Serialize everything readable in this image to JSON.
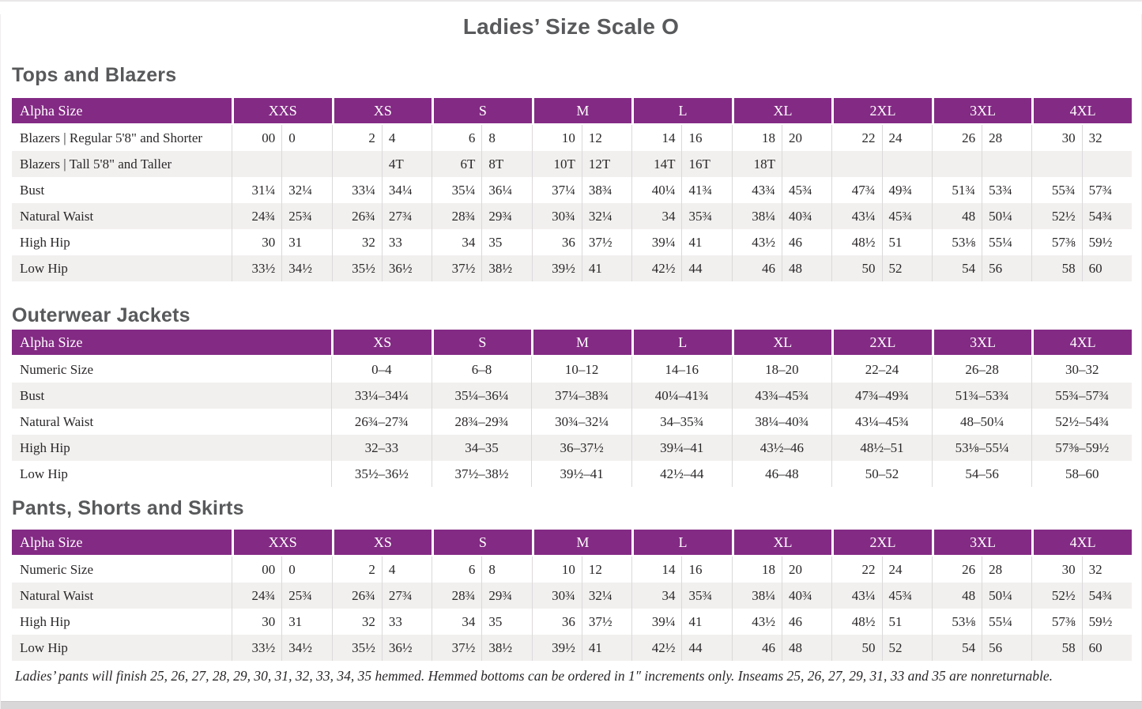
{
  "page": {
    "title": "Ladies’ Size Scale O",
    "footnote": "Ladies’ pants will finish 25, 26, 27, 28, 29, 30, 31, 32, 33, 34, 35 hemmed. Hemmed bottoms can be ordered in 1″ increments only. Inseams 25, 26, 27, 29, 31, 33 and 35 are nonreturnable."
  },
  "colors": {
    "header_purple": "#832a84",
    "stripe_gray": "#f2f0ef",
    "heading_gray": "#58595b"
  },
  "tables": {
    "tops": {
      "heading": "Tops and Blazers",
      "corner_label": "Alpha Size",
      "layout": "paired",
      "sizes": [
        "XXS",
        "XS",
        "S",
        "M",
        "L",
        "XL",
        "2XL",
        "3XL",
        "4XL"
      ],
      "rows": [
        {
          "label": "Blazers  |  Regular 5'8\" and Shorter",
          "values": [
            "00",
            "0",
            "2",
            "4",
            "6",
            "8",
            "10",
            "12",
            "14",
            "16",
            "18",
            "20",
            "22",
            "24",
            "26",
            "28",
            "30",
            "32"
          ]
        },
        {
          "label": "Blazers  |  Tall 5'8\" and Taller",
          "values": [
            "",
            "",
            "",
            "4T",
            "6T",
            "8T",
            "10T",
            "12T",
            "14T",
            "16T",
            "18T",
            "",
            "",
            "",
            "",
            "",
            "",
            ""
          ]
        },
        {
          "label": "Bust",
          "values": [
            "31¼",
            "32¼",
            "33¼",
            "34¼",
            "35¼",
            "36¼",
            "37¼",
            "38¾",
            "40¼",
            "41¾",
            "43¾",
            "45¾",
            "47¾",
            "49¾",
            "51¾",
            "53¾",
            "55¾",
            "57¾"
          ]
        },
        {
          "label": "Natural Waist",
          "values": [
            "24¾",
            "25¾",
            "26¾",
            "27¾",
            "28¾",
            "29¾",
            "30¾",
            "32¼",
            "34",
            "35¾",
            "38¼",
            "40¾",
            "43¼",
            "45¾",
            "48",
            "50¼",
            "52½",
            "54¾"
          ]
        },
        {
          "label": "High Hip",
          "values": [
            "30",
            "31",
            "32",
            "33",
            "34",
            "35",
            "36",
            "37½",
            "39¼",
            "41",
            "43½",
            "46",
            "48½",
            "51",
            "53⅛",
            "55¼",
            "57⅜",
            "59½"
          ]
        },
        {
          "label": "Low Hip",
          "values": [
            "33½",
            "34½",
            "35½",
            "36½",
            "37½",
            "38½",
            "39½",
            "41",
            "42½",
            "44",
            "46",
            "48",
            "50",
            "52",
            "54",
            "56",
            "58",
            "60"
          ]
        }
      ]
    },
    "outerwear": {
      "heading": "Outerwear Jackets",
      "corner_label": "Alpha Size",
      "layout": "single",
      "sizes": [
        "XS",
        "S",
        "M",
        "L",
        "XL",
        "2XL",
        "3XL",
        "4XL"
      ],
      "rows": [
        {
          "label": "Numeric Size",
          "values": [
            "0–4",
            "6–8",
            "10–12",
            "14–16",
            "18–20",
            "22–24",
            "26–28",
            "30–32"
          ]
        },
        {
          "label": "Bust",
          "values": [
            "33¼–34¼",
            "35¼–36¼",
            "37¼–38¾",
            "40¼–41¾",
            "43¾–45¾",
            "47¾–49¾",
            "51¾–53¾",
            "55¾–57¾"
          ]
        },
        {
          "label": "Natural Waist",
          "values": [
            "26¾–27¾",
            "28¾–29¾",
            "30¾–32¼",
            "34–35¾",
            "38¼–40¾",
            "43¼–45¾",
            "48–50¼",
            "52½–54¾"
          ]
        },
        {
          "label": "High Hip",
          "values": [
            "32–33",
            "34–35",
            "36–37½",
            "39¼–41",
            "43½–46",
            "48½–51",
            "53⅛–55¼",
            "57⅜–59½"
          ]
        },
        {
          "label": "Low Hip",
          "values": [
            "35½–36½",
            "37½–38½",
            "39½–41",
            "42½–44",
            "46–48",
            "50–52",
            "54–56",
            "58–60"
          ]
        }
      ]
    },
    "pants": {
      "heading": "Pants, Shorts and Skirts",
      "corner_label": "Alpha Size",
      "layout": "paired",
      "sizes": [
        "XXS",
        "XS",
        "S",
        "M",
        "L",
        "XL",
        "2XL",
        "3XL",
        "4XL"
      ],
      "rows": [
        {
          "label": "Numeric Size",
          "values": [
            "00",
            "0",
            "2",
            "4",
            "6",
            "8",
            "10",
            "12",
            "14",
            "16",
            "18",
            "20",
            "22",
            "24",
            "26",
            "28",
            "30",
            "32"
          ]
        },
        {
          "label": "Natural Waist",
          "values": [
            "24¾",
            "25¾",
            "26¾",
            "27¾",
            "28¾",
            "29¾",
            "30¾",
            "32¼",
            "34",
            "35¾",
            "38¼",
            "40¾",
            "43¼",
            "45¾",
            "48",
            "50¼",
            "52½",
            "54¾"
          ]
        },
        {
          "label": "High Hip",
          "values": [
            "30",
            "31",
            "32",
            "33",
            "34",
            "35",
            "36",
            "37½",
            "39¼",
            "41",
            "43½",
            "46",
            "48½",
            "51",
            "53⅛",
            "55¼",
            "57⅜",
            "59½"
          ]
        },
        {
          "label": "Low Hip",
          "values": [
            "33½",
            "34½",
            "35½",
            "36½",
            "37½",
            "38½",
            "39½",
            "41",
            "42½",
            "44",
            "46",
            "48",
            "50",
            "52",
            "54",
            "56",
            "58",
            "60"
          ]
        }
      ]
    }
  }
}
